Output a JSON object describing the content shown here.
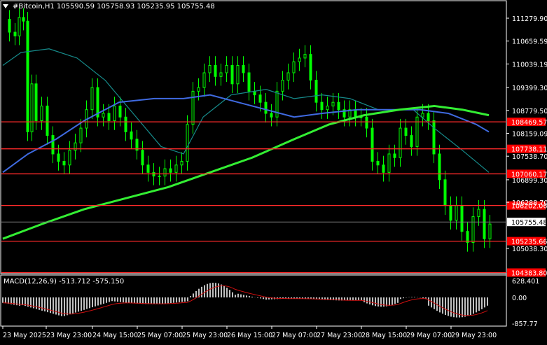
{
  "header": {
    "title": "#Bitcoin,H1  105590.59 105758.93 105235.95 105755.48"
  },
  "macd": {
    "title": "MACD(12,26,9) -513.712 -575.150",
    "axis_labels": [
      "628.401",
      "0.00",
      "-857.77"
    ]
  },
  "price_axis": {
    "labels": [
      "111279.90",
      "110659.59",
      "110039.19",
      "109399.30",
      "108779.50",
      "108159.09",
      "107538.70",
      "106899.30",
      "106288.70",
      "105038.30"
    ]
  },
  "horizontal_levels": [
    {
      "label": "108469.57",
      "value": 108469.57
    },
    {
      "label": "107738.11",
      "value": 107738.11
    },
    {
      "label": "107060.17",
      "value": 107060.17
    },
    {
      "label": "106202.06",
      "value": 106202.06
    },
    {
      "label": "105235.66",
      "value": 105235.66
    },
    {
      "label": "104383.80",
      "value": 104383.8
    }
  ],
  "current_price": {
    "label": "105755.48",
    "value": 105755.48
  },
  "time_axis": {
    "labels": [
      "23 May 2025",
      "23 May 23:00",
      "24 May 15:00",
      "25 May 07:00",
      "25 May 23:00",
      "26 May 15:00",
      "27 May 07:00",
      "27 May 23:00",
      "28 May 15:00",
      "29 May 07:00",
      "29 May 23:00"
    ]
  },
  "colors": {
    "level_line": "#ff2a2a",
    "level_label_bg": "#ff0000",
    "candle": "#00ff00",
    "ma_blue": "#3f6ae0",
    "ma_teal": "#168a8a",
    "ma_green": "#33ee33",
    "macd_hist": "#c0c0c0",
    "macd_signal": "#d01010"
  }
}
